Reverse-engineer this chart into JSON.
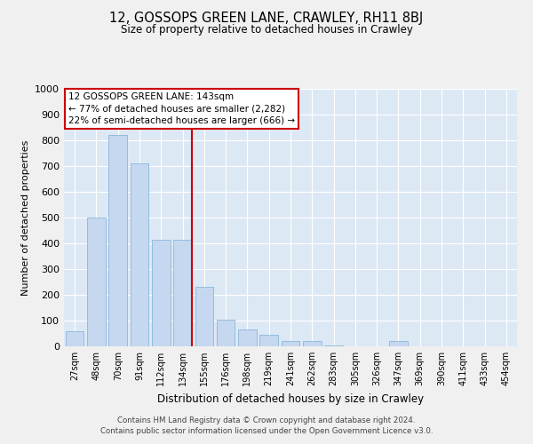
{
  "title": "12, GOSSOPS GREEN LANE, CRAWLEY, RH11 8BJ",
  "subtitle": "Size of property relative to detached houses in Crawley",
  "xlabel": "Distribution of detached houses by size in Crawley",
  "ylabel": "Number of detached properties",
  "categories": [
    "27sqm",
    "48sqm",
    "70sqm",
    "91sqm",
    "112sqm",
    "134sqm",
    "155sqm",
    "176sqm",
    "198sqm",
    "219sqm",
    "241sqm",
    "262sqm",
    "283sqm",
    "305sqm",
    "326sqm",
    "347sqm",
    "369sqm",
    "390sqm",
    "411sqm",
    "433sqm",
    "454sqm"
  ],
  "values": [
    60,
    500,
    820,
    710,
    415,
    415,
    230,
    105,
    65,
    45,
    20,
    20,
    5,
    0,
    0,
    20,
    0,
    0,
    0,
    0,
    0
  ],
  "bar_color": "#c5d8f0",
  "bar_edge_color": "#7aafd4",
  "background_color": "#dde8f5",
  "grid_color": "#ffffff",
  "marker_color": "#cc0000",
  "annotation_text": "12 GOSSOPS GREEN LANE: 143sqm\n← 77% of detached houses are smaller (2,282)\n22% of semi-detached houses are larger (666) →",
  "annotation_box_color": "#ffffff",
  "annotation_box_edge": "#cc0000",
  "ylim": [
    0,
    1000
  ],
  "yticks": [
    0,
    100,
    200,
    300,
    400,
    500,
    600,
    700,
    800,
    900,
    1000
  ],
  "footer1": "Contains HM Land Registry data © Crown copyright and database right 2024.",
  "footer2": "Contains public sector information licensed under the Open Government Licence v3.0.",
  "fig_facecolor": "#f0f0f0"
}
